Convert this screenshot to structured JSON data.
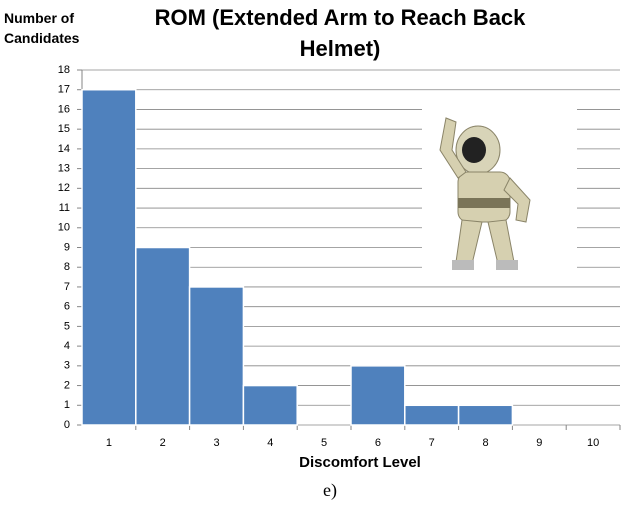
{
  "chart_data": {
    "type": "bar",
    "title": "ROM (Extended Arm to Reach Back Helmet)",
    "y_label": "Number of Candidates",
    "x_label": "Discomfort Level",
    "caption": "e)",
    "categories": [
      "1",
      "2",
      "3",
      "4",
      "5",
      "6",
      "7",
      "8",
      "9",
      "10"
    ],
    "values": [
      17,
      9,
      7,
      2,
      0,
      3,
      1,
      1,
      0,
      0
    ],
    "color": "#4f81bd",
    "ylim": [
      0,
      18
    ],
    "yticks": [
      0,
      1,
      2,
      3,
      4,
      5,
      6,
      7,
      8,
      9,
      10,
      11,
      12,
      13,
      14,
      15,
      16,
      17,
      18
    ],
    "grid": true
  }
}
